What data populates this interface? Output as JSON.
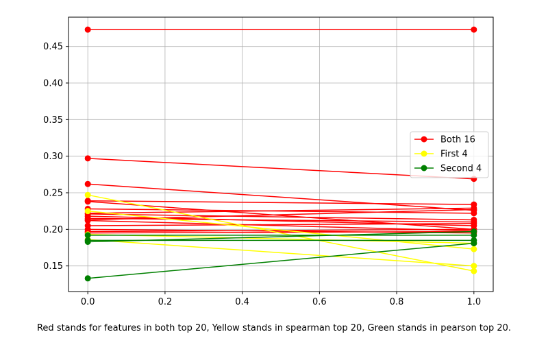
{
  "chart_data": {
    "type": "line",
    "xlim": [
      -0.05,
      1.05
    ],
    "ylim": [
      0.115,
      0.49
    ],
    "xticks": [
      0.0,
      0.2,
      0.4,
      0.6,
      0.8,
      1.0
    ],
    "xtick_labels": [
      "0.0",
      "0.2",
      "0.4",
      "0.6",
      "0.8",
      "1.0"
    ],
    "yticks": [
      0.15,
      0.2,
      0.25,
      0.3,
      0.35,
      0.4,
      0.45
    ],
    "ytick_labels": [
      "0.15",
      "0.20",
      "0.25",
      "0.30",
      "0.35",
      "0.40",
      "0.45"
    ],
    "grid": true,
    "legend_position": "center-right",
    "legend": [
      {
        "label": "Both 16",
        "color": "#ff0000"
      },
      {
        "label": "First 4",
        "color": "#ffff00"
      },
      {
        "label": "Second 4",
        "color": "#008000"
      }
    ],
    "groups": [
      {
        "group": "Both 16",
        "color": "#ff0000",
        "lines": [
          [
            0.473,
            0.473
          ],
          [
            0.297,
            0.269
          ],
          [
            0.262,
            0.226
          ],
          [
            0.239,
            0.234
          ],
          [
            0.238,
            0.2
          ],
          [
            0.228,
            0.222
          ],
          [
            0.222,
            0.229
          ],
          [
            0.221,
            0.213
          ],
          [
            0.218,
            0.205
          ],
          [
            0.215,
            0.21
          ],
          [
            0.213,
            0.227
          ],
          [
            0.212,
            0.198
          ],
          [
            0.205,
            0.208
          ],
          [
            0.2,
            0.195
          ],
          [
            0.197,
            0.2
          ],
          [
            0.195,
            0.197
          ]
        ]
      },
      {
        "group": "First 4",
        "color": "#ffff00",
        "lines": [
          [
            0.247,
            0.143
          ],
          [
            0.225,
            0.173
          ],
          [
            0.193,
            0.181
          ],
          [
            0.186,
            0.15
          ]
        ]
      },
      {
        "group": "Second 4",
        "color": "#008000",
        "lines": [
          [
            0.192,
            0.192
          ],
          [
            0.185,
            0.185
          ],
          [
            0.183,
            0.197
          ],
          [
            0.133,
            0.181
          ]
        ]
      }
    ]
  },
  "caption": "Red stands for features in both top 20, Yellow stands in spearman top 20, Green stands in pearson top 20."
}
